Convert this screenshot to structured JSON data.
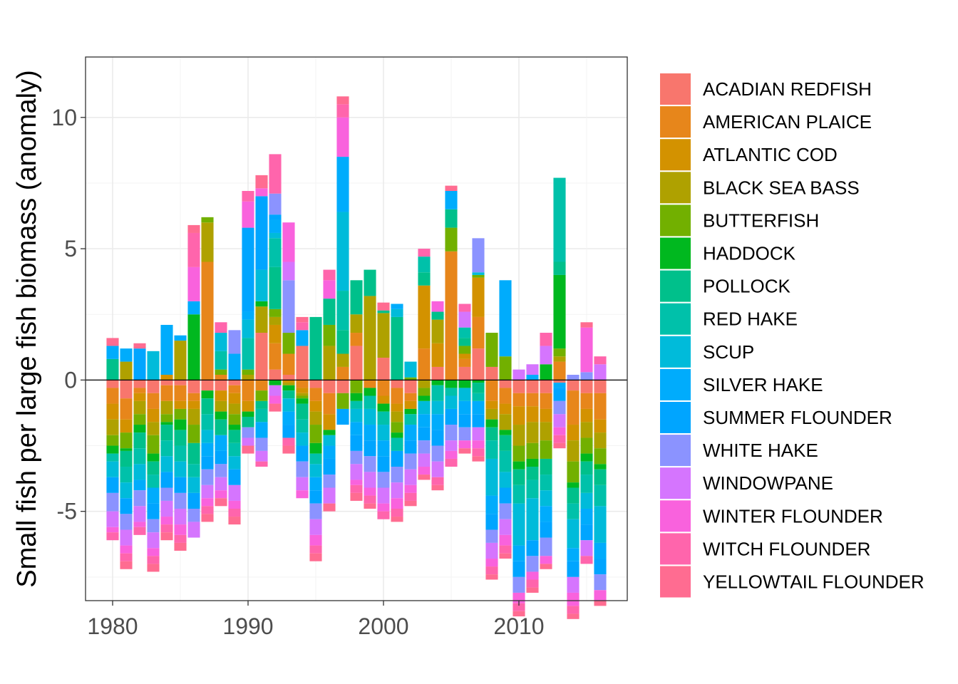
{
  "chart_data": {
    "type": "bar",
    "stacked": true,
    "title": "",
    "xlabel": "",
    "ylabel": "Small fish per large fish biomass (anomaly)",
    "xlim": [
      1978,
      2018
    ],
    "ylim": [
      -8.4,
      12.3
    ],
    "x_ticks": [
      1980,
      1990,
      2000,
      2010
    ],
    "y_ticks": [
      -5,
      0,
      5,
      10
    ],
    "y_tick_labels": [
      "-5",
      "0",
      "5",
      "10"
    ],
    "grid": true,
    "reference_line": 0,
    "legend_position": "right",
    "x": [
      1980,
      1981,
      1982,
      1983,
      1984,
      1985,
      1986,
      1987,
      1988,
      1989,
      1990,
      1991,
      1992,
      1993,
      1994,
      1995,
      1996,
      1997,
      1998,
      1999,
      2000,
      2001,
      2002,
      2003,
      2004,
      2005,
      2006,
      2007,
      2008,
      2009,
      2010,
      2011,
      2012,
      2013,
      2014,
      2015,
      2016
    ],
    "series": [
      {
        "name": "ACADIAN REDFISH",
        "color": "#F8766D",
        "values": [
          -0.3,
          -0.7,
          -0.3,
          -0.5,
          -0.2,
          -0.2,
          -0.5,
          -0.4,
          -0.4,
          -0.2,
          0,
          1.8,
          0.4,
          0.2,
          1.3,
          -0.3,
          -0.5,
          -0.5,
          1.3,
          0,
          0.85,
          -0.3,
          -0.5,
          0,
          0.5,
          0,
          0.5,
          1.2,
          0.5,
          -0.3,
          -0.5,
          -0.5,
          -0.5,
          -0.1,
          -0.4,
          -0.5,
          -0.5
        ]
      },
      {
        "name": "AMERICAN PLAICE",
        "color": "#E7861B",
        "values": [
          -0.6,
          -0.8,
          -0.2,
          -0.6,
          -0.6,
          -0.6,
          -0.3,
          4.5,
          0.2,
          -0.3,
          -0.8,
          -0.4,
          1.0,
          0.8,
          -0.3,
          -0.5,
          -0.8,
          0.5,
          0.5,
          -0.3,
          -0.6,
          -0.6,
          -0.3,
          1.2,
          0,
          4.9,
          0.3,
          1.2,
          -0.8,
          -0.6,
          -0.5,
          -0.5,
          -0.6,
          0.7,
          -1.3,
          -0.6,
          -1.0
        ]
      },
      {
        "name": "ATLANTIC COD",
        "color": "#D39200",
        "values": [
          -0.6,
          -0.5,
          -0.3,
          -0.5,
          0.2,
          -0.3,
          -0.3,
          0,
          -0.4,
          -0.4,
          -0.4,
          0,
          0.7,
          -0.1,
          -0.2,
          -0.4,
          -0.6,
          0,
          0,
          0,
          -0.3,
          -0.3,
          -0.3,
          2.4,
          0.9,
          0,
          0.2,
          1.5,
          -0.3,
          -0.4,
          -0.7,
          -0.6,
          -0.5,
          0,
          -0.6,
          -0.5,
          -0.5
        ]
      },
      {
        "name": "BLACK SEA BASS",
        "color": "#AFA100",
        "values": [
          -0.6,
          0.7,
          -0.5,
          -0.5,
          -0.5,
          1.5,
          -0.6,
          1.5,
          -0.4,
          -0.4,
          0.2,
          1.0,
          0.3,
          -0.1,
          -0.1,
          -0.5,
          1.3,
          0.5,
          0.7,
          3.2,
          1.7,
          -0.4,
          0,
          -0.3,
          0.9,
          0,
          0,
          0,
          -0.4,
          -0.6,
          -0.8,
          -0.8,
          -0.7,
          0.2,
          -0.8,
          -0.6,
          -0.6
        ]
      },
      {
        "name": "BUTTERFISH",
        "color": "#72B000",
        "values": [
          -0.4,
          -0.6,
          -0.4,
          -0.7,
          -0.3,
          -0.4,
          -0.7,
          0.2,
          0.2,
          -0.4,
          0.2,
          -0.4,
          0.3,
          0.8,
          -0.1,
          -0.7,
          0.8,
          -0.6,
          -0.5,
          0,
          0,
          -0.4,
          0.1,
          -0.3,
          0,
          0.9,
          0.3,
          0.1,
          1.3,
          0.9,
          -0.6,
          -0.6,
          -0.7,
          0.3,
          -0.8,
          -0.6,
          -0.6
        ]
      },
      {
        "name": "HADDOCK",
        "color": "#00B81F",
        "values": [
          -0.3,
          -0.1,
          -0.3,
          -0.3,
          -0.1,
          -0.4,
          2.5,
          -0.3,
          -0.3,
          -0.2,
          -0.2,
          0.2,
          -0.2,
          -0.2,
          -0.2,
          -0.4,
          -0.2,
          0,
          -0.3,
          -0.3,
          -0.3,
          -0.2,
          -0.2,
          -0.2,
          -0.2,
          -0.3,
          -0.3,
          -0.1,
          -0.3,
          -0.2,
          -0.3,
          -0.3,
          0.6,
          2.8,
          -0.2,
          -0.3,
          -0.2
        ]
      },
      {
        "name": "POLLOCK",
        "color": "#00C08B",
        "values": [
          0.8,
          -0.6,
          -0.6,
          -0.5,
          -0.6,
          -0.6,
          -0.8,
          -0.6,
          -0.6,
          -0.5,
          -0.4,
          -0.3,
          1.6,
          -0.3,
          -0.6,
          2.4,
          1.0,
          0.9,
          1.3,
          1.0,
          0.1,
          2.4,
          0,
          0.5,
          0.3,
          0.7,
          0.3,
          -0.4,
          -0.5,
          -0.6,
          -0.6,
          -0.5,
          -0.6,
          0.5,
          -0.6,
          -0.5,
          -0.6
        ]
      },
      {
        "name": "RED HAKE",
        "color": "#00C1AA",
        "values": [
          -0.3,
          -0.6,
          -0.6,
          -0.5,
          -0.6,
          -0.6,
          -0.5,
          -0.6,
          0.7,
          -0.5,
          1.2,
          -0.5,
          1.1,
          0,
          -0.5,
          -0.4,
          0,
          1.5,
          -0.3,
          -0.5,
          -0.5,
          -0.5,
          -0.4,
          0.6,
          -0.6,
          -0.3,
          0.4,
          -0.3,
          -0.7,
          -0.8,
          -0.7,
          -0.7,
          -0.6,
          3.2,
          -0.6,
          -0.7,
          -0.8
        ]
      },
      {
        "name": "SCUP",
        "color": "#00BBDA",
        "values": [
          -0.6,
          -0.6,
          -0.6,
          1.1,
          -0.6,
          -0.6,
          -0.6,
          -0.5,
          0.7,
          -0.5,
          0.7,
          1.2,
          0.2,
          -0.5,
          -0.5,
          -0.5,
          -0.4,
          3.0,
          -0.5,
          -0.6,
          -0.6,
          0.3,
          0.6,
          -0.5,
          -0.5,
          -0.5,
          -0.5,
          0.1,
          -1.4,
          -0.6,
          -1.6,
          -1.6,
          -0.6,
          0,
          -1.1,
          -0.6,
          -1.4
        ]
      },
      {
        "name": "SILVER HAKE",
        "color": "#00ACFC",
        "values": [
          0.5,
          0.5,
          -0.4,
          -0.6,
          1.9,
          0.2,
          0.5,
          -0.5,
          -0.6,
          1.0,
          0.3,
          -0.6,
          0.5,
          -0.5,
          0.6,
          -0.5,
          -0.5,
          2.1,
          -0.5,
          -0.6,
          -0.6,
          0.2,
          -0.6,
          -0.5,
          -0.6,
          0.7,
          -0.5,
          -0.5,
          -0.7,
          2.9,
          -0.6,
          0.2,
          -0.6,
          -0.2,
          -0.5,
          -0.6,
          -0.6
        ]
      },
      {
        "name": "SUMMER FLOUNDER",
        "color": "#00A5FF",
        "values": [
          -0.6,
          -0.6,
          1.2,
          -0.6,
          -0.6,
          -0.6,
          -0.6,
          -0.5,
          -0.5,
          -0.6,
          3.2,
          2.8,
          0.2,
          -0.5,
          -0.6,
          -0.5,
          -0.6,
          -0.6,
          -0.6,
          -0.6,
          -0.6,
          -0.6,
          -0.5,
          -0.5,
          -0.6,
          -0.6,
          -0.5,
          -0.5,
          -0.6,
          -0.6,
          -0.6,
          -0.6,
          -0.6,
          -0.5,
          -0.6,
          -0.6,
          -0.6
        ]
      },
      {
        "name": "WHITE HAKE",
        "color": "#8B93FF",
        "values": [
          -0.7,
          -0.6,
          -0.6,
          -0.5,
          -0.5,
          -0.6,
          -0.5,
          -0.6,
          -0.5,
          0.9,
          -0.4,
          -0.5,
          0.8,
          2.0,
          -0.6,
          -0.6,
          -0.5,
          0,
          -0.5,
          -0.6,
          -0.6,
          -0.6,
          -0.6,
          -0.5,
          -0.6,
          -0.6,
          -0.5,
          1.3,
          -0.5,
          -0.6,
          -0.6,
          -0.6,
          -0.7,
          -0.5,
          0.2,
          0.3,
          -0.6
        ]
      },
      {
        "name": "WINDOWPANE",
        "color": "#D575FE",
        "values": [
          -0.6,
          -0.6,
          -0.6,
          -0.6,
          -0.6,
          -0.6,
          -0.6,
          -0.5,
          -0.5,
          -0.6,
          -0.3,
          -0.4,
          -0.4,
          0.7,
          -0.5,
          -0.6,
          -0.6,
          0,
          -0.6,
          -0.6,
          -0.6,
          -0.6,
          -0.6,
          -0.5,
          -0.6,
          -0.4,
          0.6,
          -0.5,
          -0.6,
          -0.6,
          0.4,
          0.4,
          0.7,
          -0.5,
          -0.6,
          -0.6,
          0.6
        ]
      },
      {
        "name": "WINTER FLOUNDER",
        "color": "#F962DD",
        "values": [
          -0.2,
          -0.3,
          -0.2,
          -0.3,
          -0.3,
          -0.4,
          1.3,
          -0.3,
          -0.3,
          -0.3,
          1.0,
          0.3,
          -0.3,
          1.5,
          -0.3,
          -0.4,
          0.7,
          1.5,
          -0.2,
          -0.3,
          -0.3,
          -0.4,
          -0.3,
          -0.3,
          0.4,
          -0.3,
          -0.3,
          -0.3,
          -0.3,
          -0.4,
          -0.4,
          -0.3,
          -0.3,
          -0.3,
          -0.5,
          1.7,
          -0.4
        ]
      },
      {
        "name": "WITCH FLOUNDER",
        "color": "#FF65AC",
        "values": [
          -0.3,
          -0.3,
          -0.3,
          -0.3,
          -0.3,
          -0.3,
          1.3,
          -0.3,
          0.4,
          -0.3,
          0.4,
          -0.2,
          1.5,
          -0.3,
          0.3,
          -0.3,
          0.4,
          0.5,
          -0.3,
          -0.3,
          -0.3,
          -0.3,
          -0.3,
          0.3,
          -0.3,
          -0.3,
          0.3,
          -0.3,
          -0.3,
          -0.3,
          -0.3,
          -0.3,
          0.5,
          -0.3,
          -0.3,
          -0.3,
          0.3
        ]
      },
      {
        "name": "YELLOWTAIL FLOUNDER",
        "color": "#FF6C91",
        "values": [
          0.3,
          -0.3,
          0.2,
          -0.3,
          -0.3,
          -0.3,
          0.3,
          -0.3,
          -0.3,
          -0.3,
          -0.3,
          0.5,
          -0.3,
          -0.3,
          0.2,
          -0.3,
          -0.3,
          0.3,
          -0.3,
          -0.2,
          0.3,
          -0.2,
          -0.2,
          -0.2,
          -0.2,
          0.2,
          -0.2,
          -0.2,
          -0.2,
          -0.2,
          -0.2,
          -0.2,
          -0.2,
          -0.2,
          -0.2,
          0.2,
          -0.2
        ]
      }
    ]
  }
}
